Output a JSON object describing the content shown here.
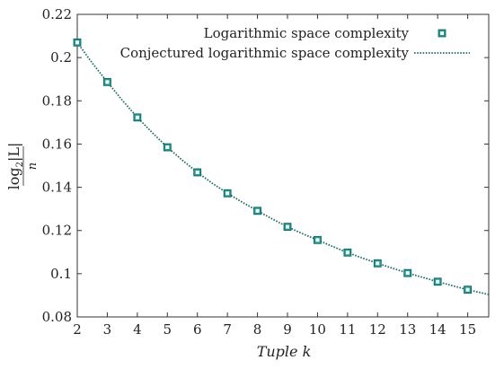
{
  "colors": {
    "marker": "#1a9e94",
    "line": "#1f6f6a",
    "axis": "#333333"
  },
  "chart_data": {
    "type": "line",
    "xlabel": "Tuple k",
    "ylabel": "log2|L| / n",
    "ylabel_parts": {
      "log": "log",
      "base": "2",
      "inner": "|L|",
      "den": "n"
    },
    "xlim": [
      2,
      15.7
    ],
    "ylim": [
      0.08,
      0.22
    ],
    "xticks": [
      2,
      3,
      4,
      5,
      6,
      7,
      8,
      9,
      10,
      11,
      12,
      13,
      14,
      15
    ],
    "yticks": [
      0.08,
      0.1,
      0.12,
      0.14,
      0.16,
      0.18,
      0.2,
      0.22
    ],
    "ytick_labels": [
      "0.08",
      "0.1",
      "0.12",
      "0.14",
      "0.16",
      "0.18",
      "0.2",
      "0.22"
    ],
    "legend_position": "top-right",
    "grid": false,
    "series": [
      {
        "name": "Logarithmic space complexity",
        "kind": "markers",
        "marker": "square",
        "x": [
          2,
          3,
          4,
          5,
          6,
          7,
          8,
          9,
          10,
          11,
          12,
          13,
          14,
          15
        ],
        "y": [
          0.207,
          0.1887,
          0.1723,
          0.1585,
          0.1469,
          0.1372,
          0.1291,
          0.1217,
          0.1156,
          0.1098,
          0.1048,
          0.1003,
          0.0963,
          0.0926
        ]
      },
      {
        "name": "Conjectured logarithmic space complexity",
        "kind": "dotted-line",
        "x": [
          2,
          2.5,
          3,
          3.5,
          4,
          4.5,
          5,
          5.5,
          6,
          6.5,
          7,
          7.5,
          8,
          8.5,
          9,
          9.5,
          10,
          10.5,
          11,
          11.5,
          12,
          12.5,
          13,
          13.5,
          14,
          14.5,
          15,
          15.5,
          15.7
        ],
        "y": [
          0.207,
          0.1975,
          0.1887,
          0.1803,
          0.1723,
          0.1652,
          0.1585,
          0.1525,
          0.1469,
          0.1418,
          0.1372,
          0.133,
          0.1291,
          0.1253,
          0.1217,
          0.1185,
          0.1156,
          0.1126,
          0.1098,
          0.1072,
          0.1048,
          0.1025,
          0.1003,
          0.0983,
          0.0963,
          0.0944,
          0.0926,
          0.091,
          0.0904
        ]
      }
    ]
  }
}
